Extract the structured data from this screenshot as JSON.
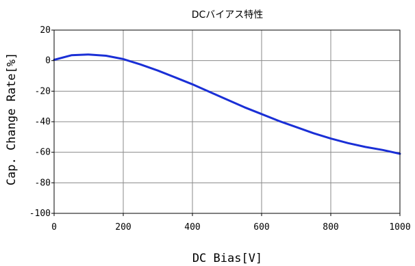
{
  "chart_data": {
    "type": "line",
    "title": "DCバイアス特性",
    "xlabel": "DC Bias[V]",
    "ylabel": "Cap. Change Rate[%]",
    "xlim": [
      0,
      1000
    ],
    "ylim": [
      -100,
      20
    ],
    "xticks": [
      0,
      200,
      400,
      600,
      800,
      1000
    ],
    "yticks": [
      20,
      0,
      -20,
      -40,
      -60,
      -80,
      -100
    ],
    "grid": true,
    "colors": {
      "line": "#1a2fd6",
      "grid": "#8a8a8a",
      "frame": "#000000"
    },
    "series": [
      {
        "x": [
          0,
          50,
          100,
          150,
          200,
          250,
          300,
          350,
          400,
          450,
          500,
          550,
          600,
          650,
          700,
          750,
          800,
          850,
          900,
          950,
          1000
        ],
        "values": [
          0.5,
          3.5,
          4.0,
          3.2,
          1.0,
          -2.5,
          -6.5,
          -11.0,
          -15.5,
          -20.5,
          -25.5,
          -30.5,
          -35.0,
          -39.5,
          -43.5,
          -47.5,
          -51.0,
          -54.0,
          -56.5,
          -58.5,
          -61.0
        ]
      }
    ]
  }
}
